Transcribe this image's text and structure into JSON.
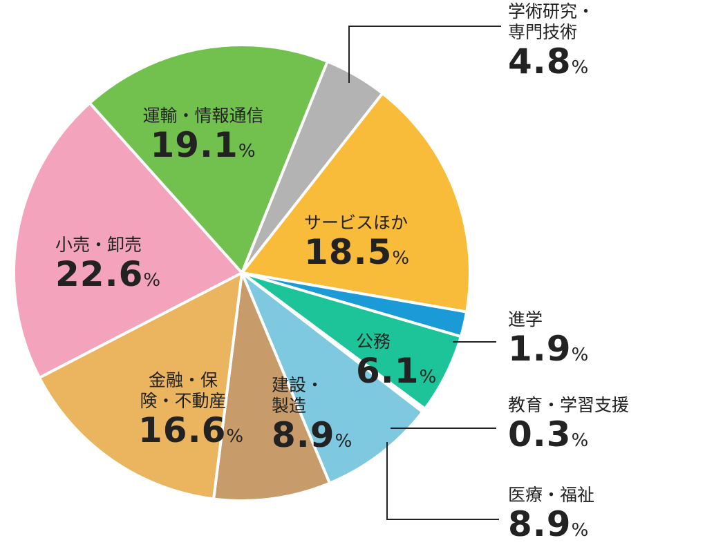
{
  "chart_data": {
    "type": "pie",
    "categories": [
      "学術研究・専門技術",
      "サービスほか",
      "進学",
      "公務",
      "教育・学習支援",
      "医療・福祉",
      "建設・製造",
      "金融・保険・不動産",
      "小売・卸売",
      "運輸・情報通信"
    ],
    "values": [
      4.8,
      18.5,
      1.9,
      6.1,
      0.3,
      8.9,
      8.9,
      16.6,
      22.6,
      19.1
    ],
    "unit": "%",
    "colors": [
      "#b3b3b3",
      "#f8bb3a",
      "#1a9ad6",
      "#1dc49a",
      "#ffffff",
      "#7ec8e0",
      "#c89b6a",
      "#ebb55f",
      "#f4a3bd",
      "#72c04e"
    ]
  }
}
